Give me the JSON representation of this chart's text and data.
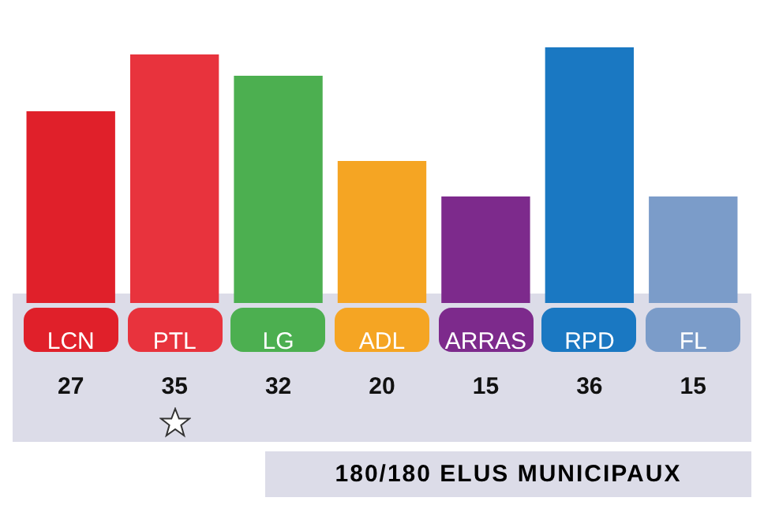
{
  "chart_data": {
    "type": "bar",
    "title": "180/180 ELUS MUNICIPAUX",
    "categories": [
      "LCN",
      "PTL",
      "LG",
      "ADL",
      "ARRAS",
      "RPD",
      "FL"
    ],
    "values": [
      27,
      35,
      32,
      20,
      15,
      36,
      15
    ],
    "colors": [
      "#e0202a",
      "#e8333d",
      "#4caf50",
      "#f5a523",
      "#7d2a8c",
      "#1a78c2",
      "#7b9cc9"
    ],
    "data_labels": true,
    "grid": false,
    "legend": false
  }
}
